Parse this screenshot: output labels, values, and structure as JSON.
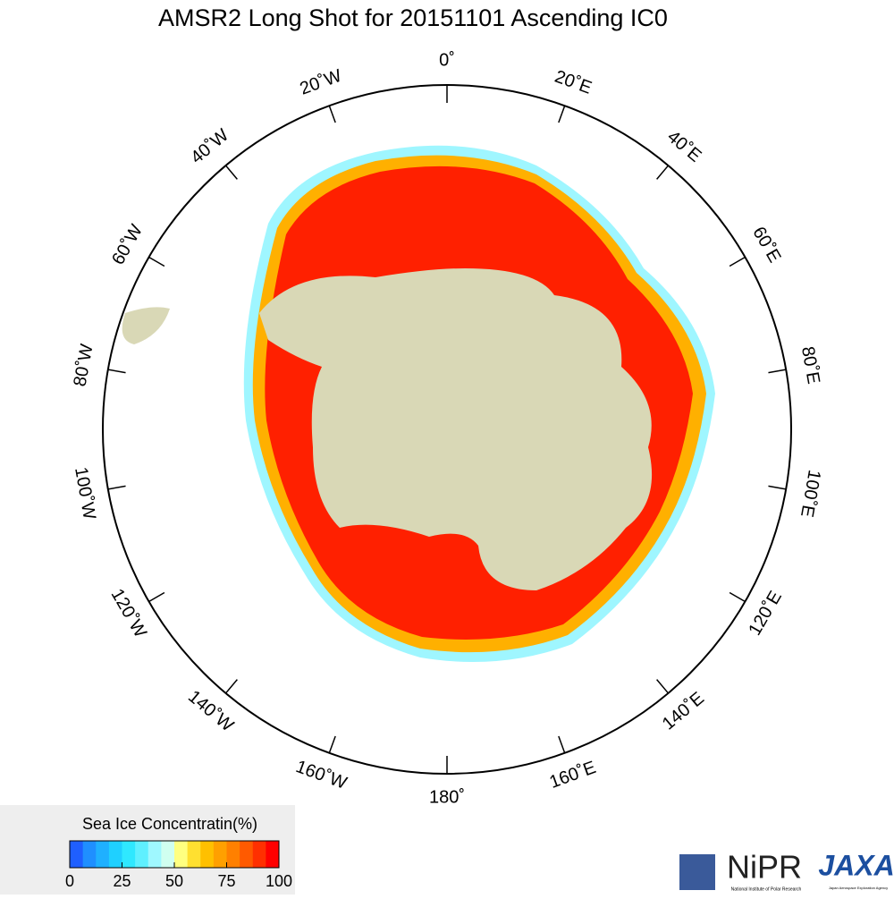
{
  "title": "AMSR2 Long Shot for 20151101 Ascending IC0",
  "graticule": {
    "labels": [
      "0˚",
      "20˚E",
      "40˚E",
      "60˚E",
      "80˚E",
      "100˚E",
      "120˚E",
      "140˚E",
      "160˚E",
      "180˚",
      "160˚W",
      "140˚W",
      "120˚W",
      "100˚W",
      "80˚W",
      "60˚W",
      "40˚W",
      "20˚W"
    ],
    "angles": [
      0,
      20,
      40,
      60,
      80,
      100,
      120,
      140,
      160,
      180,
      -160,
      -140,
      -120,
      -100,
      -80,
      -60,
      -40,
      -20
    ]
  },
  "legend": {
    "title": "Sea Ice Concentratin(%)",
    "ticks": [
      0,
      25,
      50,
      75,
      100
    ],
    "colors": [
      "#1f5fff",
      "#1f8fff",
      "#1fb0ff",
      "#1fd0ff",
      "#2fe8ff",
      "#5ff0ff",
      "#9ff8ff",
      "#d0fff0",
      "#ffff80",
      "#ffe030",
      "#ffc000",
      "#ffa000",
      "#ff8000",
      "#ff5a00",
      "#ff3000",
      "#ff0000"
    ]
  },
  "logos": {
    "nipr": "NiPR",
    "nipr_sub": "National Institute of Polar Research",
    "jaxa": "JAXA",
    "jaxa_sub": "Japan Aerospace Exploration Agency"
  }
}
